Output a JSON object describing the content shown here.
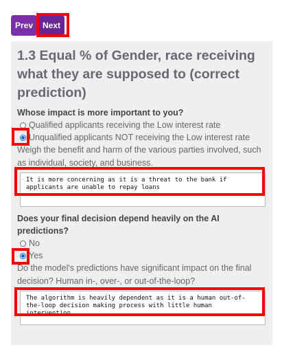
{
  "nav": {
    "prev_label": "Prev",
    "next_label": "Next"
  },
  "card": {
    "title": "1.3 Equal % of Gender, race receiving what they are supposed to (correct prediction)",
    "q1": {
      "question": "Whose impact is more important to you?",
      "options": [
        "Qualified applicants receiving the Low interest rate",
        "Unqualified applicants NOT receiving the Low interest rate"
      ],
      "selected": 1
    },
    "desc1": "Weigh the benefit and harm of the various parties involved, such as individual, society, and business.",
    "answer1": "It is more concerning as it is a threat to the bank if applicants are unable to repay loans",
    "q2": {
      "question": "Does your final decision depend heavily on the AI predictions?",
      "options": [
        "No",
        "Yes"
      ],
      "selected": 1
    },
    "desc2": "Do the model's predictions have significant impact on the final decision? Human in-, over-, or out-of-the-loop?",
    "answer2": "The algorithm is heavily dependent as it is a human out-of-the-loop decision making process with little human intervention"
  },
  "colors": {
    "accent": "#7b2fa8",
    "highlight": "#ff0000",
    "radio": "#0a66d8"
  }
}
